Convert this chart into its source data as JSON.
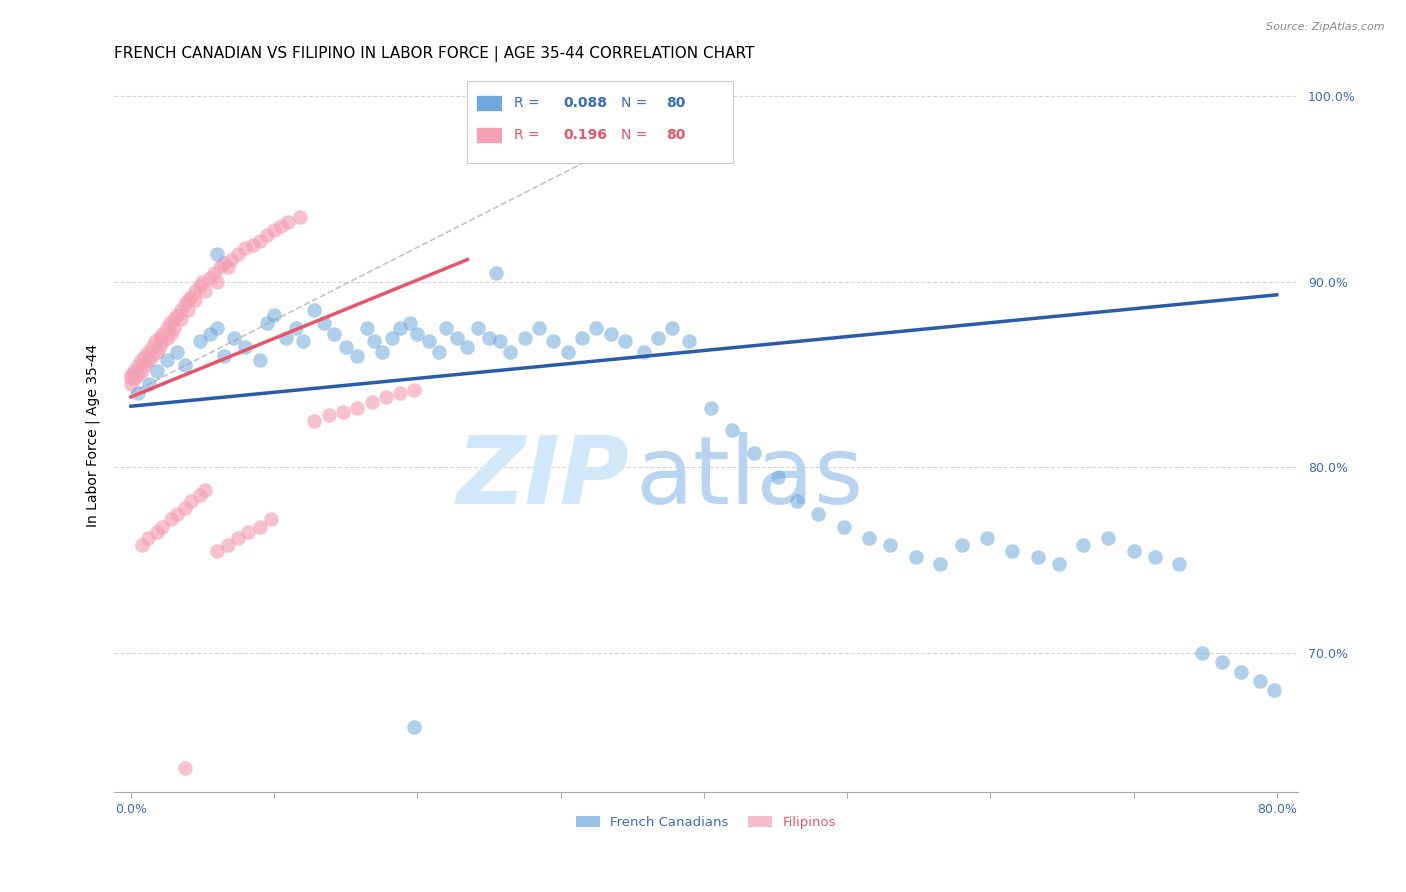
{
  "title": "FRENCH CANADIAN VS FILIPINO IN LABOR FORCE | AGE 35-44 CORRELATION CHART",
  "source_text": "Source: ZipAtlas.com",
  "ylabel": "In Labor Force | Age 35-44",
  "xlim": [
    -0.012,
    0.815
  ],
  "ylim": [
    0.625,
    1.01
  ],
  "xticks": [
    0.0,
    0.1,
    0.2,
    0.3,
    0.4,
    0.5,
    0.6,
    0.7,
    0.8
  ],
  "xticklabels": [
    "0.0%",
    "",
    "",
    "",
    "",
    "",
    "",
    "",
    "80.0%"
  ],
  "yticks": [
    0.7,
    0.8,
    0.9,
    1.0
  ],
  "yticklabels": [
    "70.0%",
    "80.0%",
    "90.0%",
    "100.0%"
  ],
  "legend_labels": [
    "French Canadians",
    "Filipinos"
  ],
  "blue_color": "#6fa8dc",
  "pink_color": "#f4a0b5",
  "blue_line_color": "#2a5caa",
  "pink_line_color": "#e8546a",
  "title_fontsize": 11,
  "axis_label_fontsize": 10,
  "tick_fontsize": 9,
  "blue_line_x0": 0.0,
  "blue_line_y0": 0.833,
  "blue_line_x1": 0.8,
  "blue_line_y1": 0.893,
  "pink_line_x0": 0.0,
  "pink_line_y0": 0.838,
  "pink_line_x1": 0.235,
  "pink_line_y1": 0.912,
  "ref_line_x0": 0.0,
  "ref_line_y0": 0.84,
  "ref_line_x1": 0.42,
  "ref_line_y1": 1.005,
  "blue_x": [
    0.005,
    0.013,
    0.018,
    0.025,
    0.032,
    0.038,
    0.048,
    0.055,
    0.06,
    0.065,
    0.072,
    0.08,
    0.09,
    0.095,
    0.1,
    0.108,
    0.115,
    0.12,
    0.128,
    0.135,
    0.142,
    0.15,
    0.158,
    0.165,
    0.17,
    0.175,
    0.182,
    0.188,
    0.195,
    0.2,
    0.208,
    0.215,
    0.22,
    0.228,
    0.235,
    0.242,
    0.25,
    0.258,
    0.265,
    0.275,
    0.285,
    0.295,
    0.305,
    0.315,
    0.325,
    0.335,
    0.345,
    0.358,
    0.368,
    0.378,
    0.39,
    0.405,
    0.42,
    0.435,
    0.452,
    0.465,
    0.48,
    0.498,
    0.515,
    0.53,
    0.548,
    0.565,
    0.58,
    0.598,
    0.615,
    0.633,
    0.648,
    0.665,
    0.682,
    0.7,
    0.715,
    0.732,
    0.748,
    0.762,
    0.775,
    0.788,
    0.798,
    0.06,
    0.255,
    0.198
  ],
  "blue_y": [
    0.84,
    0.845,
    0.852,
    0.858,
    0.862,
    0.855,
    0.868,
    0.872,
    0.875,
    0.86,
    0.87,
    0.865,
    0.858,
    0.878,
    0.882,
    0.87,
    0.875,
    0.868,
    0.885,
    0.878,
    0.872,
    0.865,
    0.86,
    0.875,
    0.868,
    0.862,
    0.87,
    0.875,
    0.878,
    0.872,
    0.868,
    0.862,
    0.875,
    0.87,
    0.865,
    0.875,
    0.87,
    0.868,
    0.862,
    0.87,
    0.875,
    0.868,
    0.862,
    0.87,
    0.875,
    0.872,
    0.868,
    0.862,
    0.87,
    0.875,
    0.868,
    0.832,
    0.82,
    0.808,
    0.795,
    0.782,
    0.775,
    0.768,
    0.762,
    0.758,
    0.752,
    0.748,
    0.758,
    0.762,
    0.755,
    0.752,
    0.748,
    0.758,
    0.762,
    0.755,
    0.752,
    0.748,
    0.7,
    0.695,
    0.69,
    0.685,
    0.68,
    0.915,
    0.905,
    0.66
  ],
  "pink_x": [
    0.0,
    0.0,
    0.0,
    0.002,
    0.003,
    0.005,
    0.005,
    0.007,
    0.008,
    0.01,
    0.01,
    0.012,
    0.013,
    0.015,
    0.015,
    0.017,
    0.018,
    0.02,
    0.02,
    0.022,
    0.022,
    0.025,
    0.025,
    0.027,
    0.028,
    0.03,
    0.03,
    0.032,
    0.035,
    0.035,
    0.038,
    0.04,
    0.04,
    0.042,
    0.045,
    0.045,
    0.048,
    0.05,
    0.052,
    0.055,
    0.058,
    0.06,
    0.062,
    0.065,
    0.068,
    0.07,
    0.075,
    0.08,
    0.085,
    0.09,
    0.095,
    0.1,
    0.105,
    0.11,
    0.118,
    0.128,
    0.138,
    0.148,
    0.158,
    0.168,
    0.178,
    0.188,
    0.198,
    0.008,
    0.012,
    0.018,
    0.022,
    0.028,
    0.032,
    0.038,
    0.042,
    0.048,
    0.052,
    0.06,
    0.068,
    0.075,
    0.082,
    0.09,
    0.098,
    0.038
  ],
  "pink_y": [
    0.85,
    0.848,
    0.845,
    0.852,
    0.848,
    0.855,
    0.85,
    0.858,
    0.852,
    0.86,
    0.855,
    0.862,
    0.858,
    0.865,
    0.86,
    0.868,
    0.862,
    0.87,
    0.865,
    0.872,
    0.868,
    0.875,
    0.87,
    0.878,
    0.872,
    0.88,
    0.875,
    0.882,
    0.885,
    0.88,
    0.888,
    0.89,
    0.885,
    0.892,
    0.895,
    0.89,
    0.898,
    0.9,
    0.895,
    0.902,
    0.905,
    0.9,
    0.908,
    0.91,
    0.908,
    0.912,
    0.915,
    0.918,
    0.92,
    0.922,
    0.925,
    0.928,
    0.93,
    0.932,
    0.935,
    0.825,
    0.828,
    0.83,
    0.832,
    0.835,
    0.838,
    0.84,
    0.842,
    0.758,
    0.762,
    0.765,
    0.768,
    0.772,
    0.775,
    0.778,
    0.782,
    0.785,
    0.788,
    0.755,
    0.758,
    0.762,
    0.765,
    0.768,
    0.772,
    0.638
  ],
  "legend_R_blue": "0.088",
  "legend_N_blue": "80",
  "legend_R_pink": "0.196",
  "legend_N_pink": "80"
}
